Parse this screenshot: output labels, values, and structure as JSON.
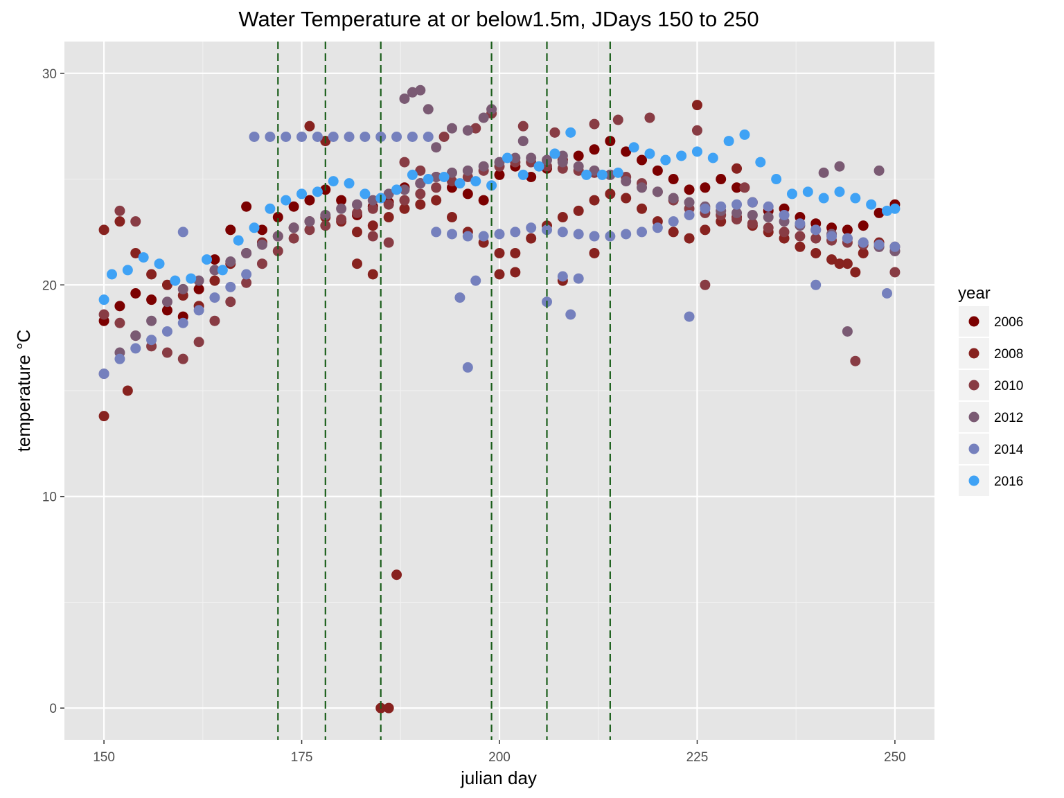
{
  "chart_data": {
    "type": "scatter",
    "title": "Water Temperature at or below1.5m, JDays 150 to 250",
    "xlabel": "julian day",
    "ylabel": "temperature °C",
    "xlim": [
      145,
      255
    ],
    "ylim": [
      -1.5,
      31.5
    ],
    "x_ticks": [
      150,
      175,
      200,
      225,
      250
    ],
    "y_ticks": [
      0,
      10,
      20,
      30
    ],
    "grid": true,
    "legend": {
      "title": "year",
      "placement": "right"
    },
    "vlines": [
      172,
      178,
      185,
      199,
      206,
      214
    ],
    "vline_color": "#1a5e1a",
    "panel_color": "#e5e5e5",
    "series": [
      {
        "name": "2006",
        "color": "#7b0000",
        "x": [
          150,
          152,
          154,
          156,
          158,
          160,
          162,
          164,
          166,
          168,
          170,
          172,
          174,
          176,
          178,
          180,
          182,
          184,
          186,
          188,
          190,
          192,
          194,
          196,
          198,
          200,
          202,
          204,
          206,
          208,
          210,
          212,
          214,
          216,
          218,
          220,
          222,
          224,
          226,
          228,
          230,
          232,
          234,
          236,
          238,
          240,
          242,
          244,
          246,
          248,
          250
        ],
        "y": [
          18.3,
          19.0,
          19.6,
          19.3,
          18.8,
          18.5,
          19.8,
          21.2,
          22.6,
          23.7,
          22.6,
          23.2,
          23.7,
          24.0,
          24.5,
          24.0,
          23.3,
          23.7,
          23.9,
          24.6,
          24.8,
          25.1,
          24.6,
          24.3,
          24.0,
          25.2,
          25.6,
          25.1,
          25.5,
          25.9,
          26.1,
          26.4,
          26.8,
          26.3,
          25.9,
          25.4,
          25.0,
          24.5,
          24.6,
          25.0,
          24.6,
          23.9,
          23.5,
          23.6,
          23.2,
          22.9,
          22.7,
          22.6,
          22.8,
          23.4,
          23.8
        ]
      },
      {
        "name": "2008",
        "color": "#87221f",
        "x": [
          150,
          152,
          154,
          156,
          158,
          160,
          162,
          164,
          166,
          168,
          170,
          172,
          174,
          176,
          178,
          180,
          182,
          184,
          186,
          188,
          190,
          192,
          194,
          196,
          198,
          200,
          202,
          204,
          206,
          208,
          210,
          212,
          214,
          216,
          218,
          220,
          222,
          224,
          226,
          228,
          230,
          232,
          234,
          236,
          238,
          240,
          242,
          244,
          246,
          248,
          250,
          150,
          153,
          176,
          178,
          182,
          184,
          185,
          186,
          187,
          200,
          202,
          208,
          212,
          225,
          230,
          243,
          245
        ],
        "y": [
          22.6,
          23.0,
          21.5,
          20.5,
          20.0,
          19.5,
          19.0,
          20.2,
          21.0,
          21.5,
          22.0,
          22.3,
          22.7,
          23.0,
          23.2,
          23.0,
          22.5,
          22.8,
          23.2,
          23.6,
          23.8,
          24.0,
          23.2,
          22.5,
          22.0,
          21.5,
          21.5,
          22.2,
          22.8,
          23.2,
          23.5,
          24.0,
          24.3,
          24.1,
          23.6,
          23.0,
          22.5,
          22.2,
          22.6,
          23.0,
          23.2,
          22.8,
          22.5,
          22.2,
          21.8,
          21.5,
          21.2,
          21.0,
          21.5,
          22.0,
          21.8,
          13.8,
          15.0,
          27.5,
          26.8,
          21.0,
          20.5,
          0,
          0,
          6.3,
          20.5,
          20.6,
          20.2,
          21.5,
          28.5,
          25.5,
          21.0,
          20.6
        ]
      },
      {
        "name": "2010",
        "color": "#883c44",
        "x": [
          150,
          152,
          154,
          156,
          158,
          160,
          162,
          164,
          166,
          168,
          170,
          172,
          174,
          176,
          178,
          180,
          182,
          184,
          186,
          188,
          190,
          192,
          194,
          196,
          198,
          200,
          202,
          204,
          206,
          208,
          210,
          212,
          214,
          216,
          218,
          220,
          222,
          224,
          226,
          228,
          230,
          232,
          234,
          236,
          238,
          240,
          242,
          244,
          246,
          248,
          250,
          152,
          154,
          184,
          186,
          188,
          190,
          193,
          197,
          199,
          203,
          207,
          212,
          215,
          219,
          225,
          226,
          231,
          245,
          250
        ],
        "y": [
          18.6,
          18.2,
          17.6,
          17.1,
          16.8,
          16.5,
          17.3,
          18.3,
          19.2,
          20.1,
          21.0,
          21.6,
          22.2,
          22.6,
          22.8,
          23.1,
          23.4,
          23.6,
          23.8,
          24.0,
          24.3,
          24.6,
          24.9,
          25.1,
          25.4,
          25.6,
          25.8,
          25.8,
          25.6,
          25.5,
          25.4,
          25.3,
          25.2,
          25.1,
          24.8,
          24.4,
          24.0,
          23.6,
          23.4,
          23.3,
          23.1,
          22.9,
          22.7,
          22.5,
          22.3,
          22.2,
          22.1,
          22.0,
          21.9,
          21.8,
          21.6,
          23.5,
          23.0,
          22.3,
          22.0,
          25.8,
          25.4,
          27.0,
          27.4,
          28.1,
          27.5,
          27.2,
          27.6,
          27.8,
          27.9,
          27.3,
          20.0,
          24.6,
          16.4,
          20.6
        ]
      },
      {
        "name": "2012",
        "color": "#7a5a73",
        "x": [
          150,
          152,
          154,
          156,
          158,
          160,
          162,
          164,
          166,
          168,
          170,
          172,
          174,
          176,
          178,
          180,
          182,
          184,
          186,
          188,
          190,
          192,
          194,
          196,
          198,
          200,
          202,
          204,
          206,
          208,
          210,
          212,
          214,
          216,
          218,
          220,
          222,
          224,
          226,
          228,
          230,
          232,
          234,
          236,
          238,
          240,
          242,
          244,
          246,
          248,
          250,
          188,
          189,
          190,
          191,
          192,
          194,
          196,
          198,
          199,
          203,
          208,
          241,
          243,
          244,
          248
        ],
        "y": [
          15.8,
          16.8,
          17.6,
          18.3,
          19.2,
          19.8,
          20.2,
          20.7,
          21.1,
          21.5,
          21.9,
          22.3,
          22.7,
          23.0,
          23.3,
          23.6,
          23.8,
          24.0,
          24.3,
          24.5,
          24.8,
          25.1,
          25.3,
          25.4,
          25.6,
          25.8,
          26.0,
          26.0,
          25.9,
          25.8,
          25.6,
          25.4,
          25.2,
          24.9,
          24.6,
          24.4,
          24.1,
          23.9,
          23.7,
          23.5,
          23.4,
          23.3,
          23.2,
          23.0,
          22.8,
          22.6,
          22.4,
          22.2,
          22.0,
          21.8,
          21.6,
          28.8,
          29.1,
          29.2,
          28.3,
          26.5,
          27.4,
          27.3,
          27.9,
          28.3,
          26.8,
          26.1,
          25.3,
          25.6,
          17.8,
          25.4
        ]
      },
      {
        "name": "2014",
        "color": "#7580bd",
        "x": [
          150,
          152,
          154,
          156,
          158,
          160,
          162,
          164,
          166,
          168,
          169,
          171,
          173,
          175,
          177,
          179,
          181,
          183,
          185,
          187,
          189,
          191,
          192,
          194,
          196,
          198,
          200,
          202,
          204,
          206,
          208,
          210,
          212,
          214,
          216,
          218,
          220,
          222,
          224,
          226,
          228,
          230,
          232,
          234,
          236,
          238,
          240,
          242,
          244,
          246,
          248,
          250,
          160,
          195,
          196,
          197,
          206,
          208,
          209,
          210,
          224,
          240,
          249
        ],
        "y": [
          15.8,
          16.5,
          17.0,
          17.4,
          17.8,
          18.2,
          18.8,
          19.4,
          19.9,
          20.5,
          27.0,
          27.0,
          27.0,
          27.0,
          27.0,
          27.0,
          27.0,
          27.0,
          27.0,
          27.0,
          27.0,
          27.0,
          22.5,
          22.4,
          22.3,
          22.3,
          22.4,
          22.5,
          22.7,
          22.6,
          22.5,
          22.4,
          22.3,
          22.3,
          22.4,
          22.5,
          22.7,
          23.0,
          23.3,
          23.6,
          23.7,
          23.8,
          23.9,
          23.7,
          23.3,
          22.9,
          22.6,
          22.3,
          22.2,
          22.0,
          21.9,
          21.8,
          22.5,
          19.4,
          16.1,
          20.2,
          19.2,
          20.4,
          18.6,
          20.3,
          18.5,
          20.0,
          19.6
        ]
      },
      {
        "name": "2016",
        "color": "#3fa2f5",
        "x": [
          150,
          151,
          153,
          155,
          157,
          159,
          161,
          163,
          165,
          167,
          169,
          171,
          173,
          175,
          177,
          179,
          181,
          183,
          185,
          187,
          189,
          191,
          193,
          195,
          197,
          199,
          201,
          203,
          205,
          207,
          209,
          211,
          213,
          215,
          217,
          219,
          221,
          223,
          225,
          227,
          229,
          231,
          233,
          235,
          237,
          239,
          241,
          243,
          245,
          247,
          249,
          250
        ],
        "y": [
          19.3,
          20.5,
          20.7,
          21.3,
          21.0,
          20.2,
          20.3,
          21.2,
          20.7,
          22.1,
          22.7,
          23.6,
          24.0,
          24.3,
          24.4,
          24.9,
          24.8,
          24.3,
          24.1,
          24.5,
          25.2,
          25.0,
          25.1,
          24.8,
          24.9,
          24.7,
          26.0,
          25.2,
          25.6,
          26.2,
          27.2,
          25.2,
          25.2,
          25.3,
          26.5,
          26.2,
          25.9,
          26.1,
          26.3,
          26.0,
          26.8,
          27.1,
          25.8,
          25.0,
          24.3,
          24.4,
          24.1,
          24.4,
          24.1,
          23.8,
          23.5,
          23.6
        ]
      }
    ]
  }
}
